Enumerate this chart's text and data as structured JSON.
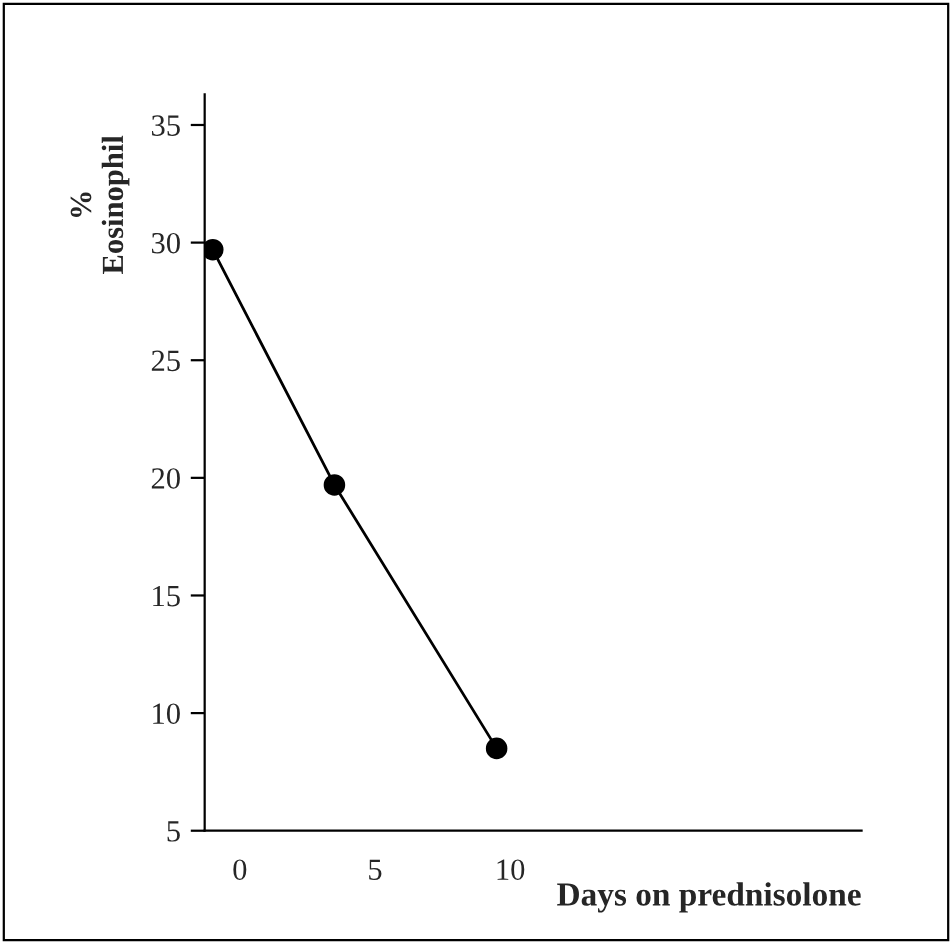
{
  "chart_data": {
    "type": "line",
    "xlabel": "Days on prednisolone",
    "ylabel": "%\nEosinophil",
    "x": [
      -1,
      3.5,
      9.5
    ],
    "values": [
      29.7,
      19.7,
      8.5
    ],
    "color": "#000000",
    "marker": "circle",
    "line_style": "solid",
    "xlim": [
      -1.3,
      23
    ],
    "xticks": [
      0,
      5,
      10
    ],
    "ylim": [
      5,
      36.3
    ],
    "yticks": [
      5,
      10,
      15,
      20,
      25,
      30,
      35
    ],
    "grid": false,
    "legend": false
  }
}
